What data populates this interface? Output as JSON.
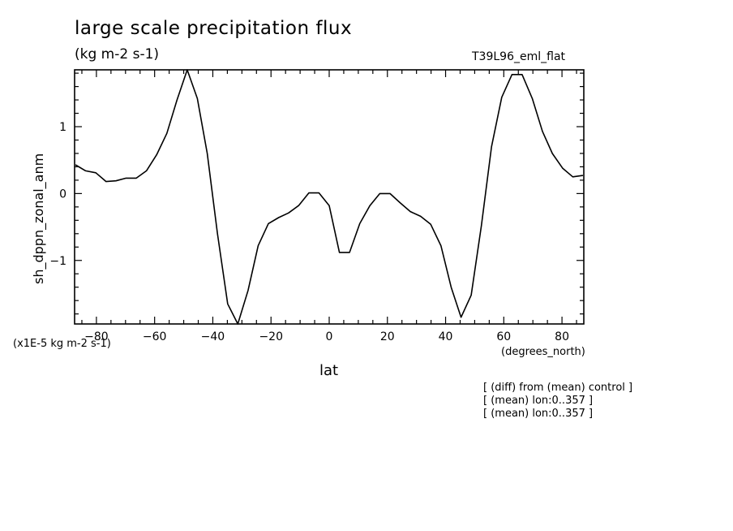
{
  "chart_data": {
    "type": "line",
    "title": "large scale precipitation flux",
    "subtitle": "(kg m-2 s-1)",
    "run_label": "T39L96_eml_flat",
    "xlabel": "lat",
    "x_units": "(degrees_north)",
    "ylabel": "sh_dppn_zonal_anm",
    "y_units": "(x1E-5 kg m-2 s-1)",
    "xlim": [
      -87.5,
      87.5
    ],
    "ylim": [
      -1.95,
      1.85
    ],
    "xticks": [
      -80,
      -60,
      -40,
      -20,
      0,
      20,
      40,
      60,
      80
    ],
    "yticks": [
      -1,
      0,
      1
    ],
    "grid": false,
    "series": [
      {
        "x": [
          -87.2,
          -83.7,
          -80.2,
          -76.7,
          -73.3,
          -69.8,
          -66.3,
          -62.8,
          -59.3,
          -55.8,
          -52.3,
          -48.8,
          -45.3,
          -41.9,
          -38.4,
          -34.9,
          -31.4,
          -27.9,
          -24.4,
          -20.9,
          -17.4,
          -14.0,
          -10.5,
          -7.0,
          -3.5,
          0.0,
          3.5,
          7.0,
          10.5,
          14.0,
          17.4,
          20.9,
          24.4,
          27.9,
          31.4,
          34.9,
          38.4,
          41.9,
          45.3,
          48.8,
          52.3,
          55.8,
          59.3,
          62.8,
          66.3,
          69.8,
          73.3,
          76.7,
          80.2,
          83.7,
          87.2
        ],
        "values": [
          0.43,
          0.34,
          0.31,
          0.18,
          0.19,
          0.23,
          0.23,
          0.34,
          0.58,
          0.9,
          1.4,
          1.85,
          1.42,
          0.6,
          -0.6,
          -1.65,
          -1.95,
          -1.45,
          -0.78,
          -0.45,
          -0.36,
          -0.29,
          -0.18,
          0.01,
          0.01,
          -0.18,
          -0.88,
          -0.88,
          -0.45,
          -0.18,
          0.0,
          0.0,
          -0.14,
          -0.27,
          -0.34,
          -0.46,
          -0.78,
          -1.4,
          -1.85,
          -1.52,
          -0.48,
          0.7,
          1.44,
          1.78,
          1.78,
          1.42,
          0.93,
          0.6,
          0.38,
          0.25,
          0.27
        ]
      }
    ]
  },
  "notes": [
    "[ (diff) from (mean) control ]",
    "[ (mean) lon:0..357 ]",
    "[ (mean) lon:0..357 ]"
  ],
  "colors": {
    "line": "#000000",
    "background": "#ffffff"
  }
}
